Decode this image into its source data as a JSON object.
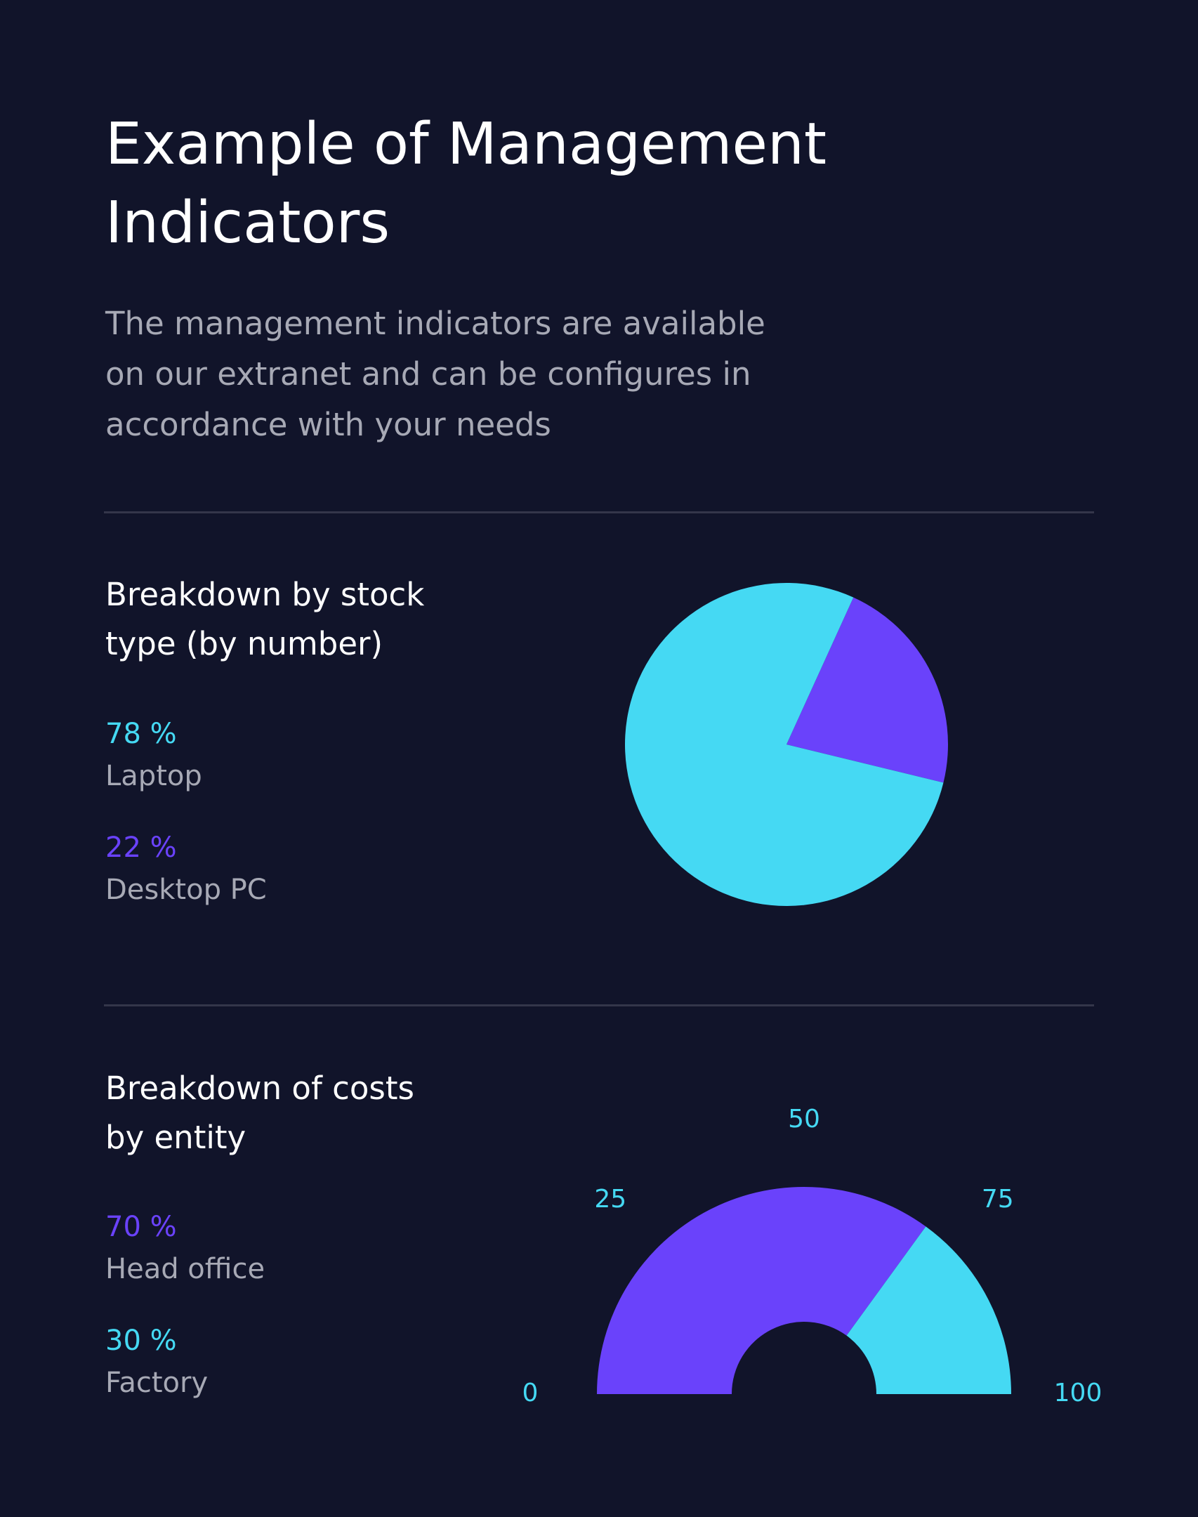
{
  "page": {
    "title": "Example of Management\nIndicators",
    "intro": "The management indicators are available\non our extranet and can be configures in\naccordance with your needs"
  },
  "colors": {
    "background": "#11142a",
    "cyan": "#45d9f3",
    "purple": "#6a42fb",
    "divider": "#34364a",
    "muted_text": "#a7a9b5"
  },
  "stock_section": {
    "title": "Breakdown by stock\ntype (by number)",
    "legend": [
      {
        "value": "78 %",
        "label": "Laptop",
        "color": "#45d9f3"
      },
      {
        "value": "22 %",
        "label": "Desktop PC",
        "color": "#6a42fb"
      }
    ]
  },
  "costs_section": {
    "title": "Breakdown of costs\nby entity",
    "legend": [
      {
        "value": "70 %",
        "label": "Head office",
        "color": "#6a42fb"
      },
      {
        "value": "30 %",
        "label": "Factory",
        "color": "#45d9f3"
      }
    ]
  },
  "chart_data": [
    {
      "type": "pie",
      "title": "Breakdown by stock type (by number)",
      "categories": [
        "Laptop",
        "Desktop PC"
      ],
      "values": [
        78,
        22
      ],
      "colors": [
        "#45d9f3",
        "#6a42fb"
      ]
    },
    {
      "type": "pie",
      "subtype": "half-donut gauge",
      "title": "Breakdown of costs by entity",
      "categories": [
        "Head office",
        "Factory"
      ],
      "values": [
        70,
        30
      ],
      "colors": [
        "#6a42fb",
        "#45d9f3"
      ],
      "scale_ticks": [
        "0",
        "25",
        "50",
        "75",
        "100"
      ],
      "range": [
        0,
        100
      ]
    }
  ]
}
